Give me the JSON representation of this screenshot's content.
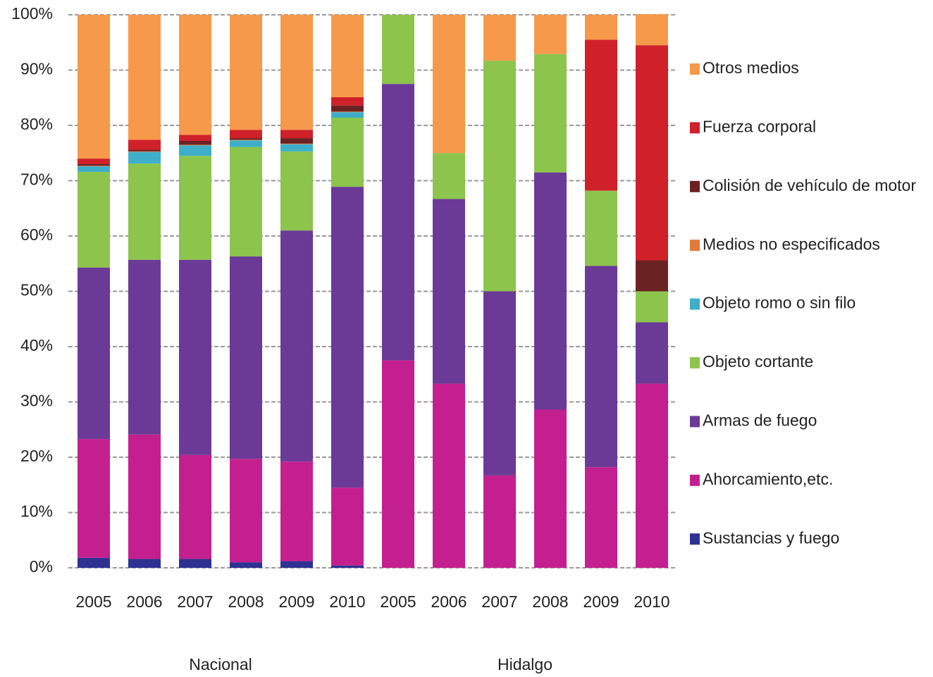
{
  "chart_data": {
    "type": "stacked_bar",
    "groups": [
      {
        "name": "Nacional",
        "categories": [
          "2005",
          "2006",
          "2007",
          "2008",
          "2009",
          "2010"
        ]
      },
      {
        "name": "Hidalgo",
        "categories": [
          "2005",
          "2006",
          "2007",
          "2008",
          "2009",
          "2010"
        ]
      }
    ],
    "series": [
      {
        "name": "Sustancias y fuego",
        "color": "#2e3192",
        "values": [
          1.8,
          1.6,
          1.6,
          1.0,
          1.2,
          0.4,
          0,
          0,
          0,
          0,
          0,
          0
        ]
      },
      {
        "name": "Ahorcamiento,etc.",
        "color": "#c41f8e",
        "values": [
          21.5,
          22.5,
          18.8,
          18.7,
          18.0,
          14.1,
          37.5,
          33.3,
          16.7,
          28.6,
          18.2,
          33.3
        ]
      },
      {
        "name": "Armas de fuego",
        "color": "#6b3a96",
        "values": [
          31.0,
          31.6,
          35.3,
          36.6,
          41.8,
          54.4,
          50.0,
          33.4,
          33.3,
          42.9,
          36.4,
          11.1
        ]
      },
      {
        "name": "Objeto cortante",
        "color": "#8dc44c",
        "values": [
          17.3,
          17.4,
          18.8,
          19.8,
          14.3,
          12.5,
          12.5,
          8.3,
          41.7,
          21.4,
          13.6,
          5.6
        ]
      },
      {
        "name": "Objeto romo o sin filo",
        "color": "#3eafc9",
        "values": [
          1.0,
          2.1,
          1.9,
          1.2,
          1.3,
          1.0,
          0,
          0,
          0,
          0,
          0,
          0
        ]
      },
      {
        "name": "Medios no especificados",
        "color": "#e07b39",
        "values": [
          0.1,
          0.1,
          0.1,
          0.1,
          0.1,
          0.1,
          0,
          0,
          0,
          0,
          0,
          0
        ]
      },
      {
        "name": "Colisión de vehículo de motor",
        "color": "#6b2222",
        "values": [
          0.3,
          0.3,
          0.7,
          0.3,
          1.0,
          1.1,
          0,
          0,
          0,
          0,
          0,
          5.6
        ]
      },
      {
        "name": "Fuerza corporal",
        "color": "#d0202a",
        "values": [
          1.0,
          1.8,
          1.1,
          1.5,
          1.5,
          1.5,
          0,
          0,
          0,
          0,
          27.3,
          38.9
        ]
      },
      {
        "name": "Otros medios",
        "color": "#f7994a",
        "values": [
          26.0,
          22.6,
          21.7,
          20.8,
          20.8,
          14.9,
          0,
          25.0,
          8.3,
          7.1,
          4.5,
          5.6
        ]
      }
    ],
    "ylim": [
      0,
      100
    ],
    "yticks": [
      {
        "value": 0,
        "label": "0%"
      },
      {
        "value": 10,
        "label": "10%"
      },
      {
        "value": 20,
        "label": "20%"
      },
      {
        "value": 30,
        "label": "30%"
      },
      {
        "value": 40,
        "label": "40%"
      },
      {
        "value": 50,
        "label": "50%"
      },
      {
        "value": 60,
        "label": "60%"
      },
      {
        "value": 70,
        "label": "70%"
      },
      {
        "value": 80,
        "label": "80%"
      },
      {
        "value": 90,
        "label": "90%"
      },
      {
        "value": 100,
        "label": "100%"
      }
    ],
    "grid": true,
    "legend": "right"
  }
}
